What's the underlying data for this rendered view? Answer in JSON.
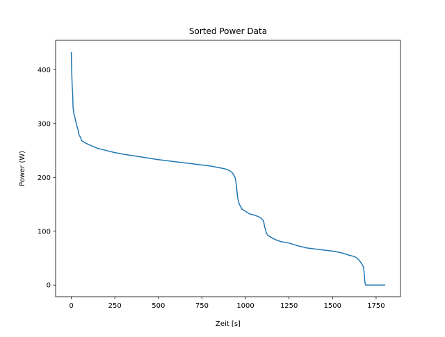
{
  "chart_data": {
    "type": "line",
    "title": "Sorted Power Data",
    "xlabel": "Zeit [s]",
    "ylabel": "Power (W)",
    "xlim": [
      -90,
      1890
    ],
    "ylim": [
      -21.65,
      454.65
    ],
    "xticks": [
      0,
      250,
      500,
      750,
      1000,
      1250,
      1500,
      1750
    ],
    "yticks": [
      0,
      100,
      200,
      300,
      400
    ],
    "grid": false,
    "series": [
      {
        "color": "#1f77b4",
        "x": [
          0,
          3,
          5,
          8,
          10,
          15,
          20,
          25,
          30,
          40,
          45,
          50,
          55,
          60,
          70,
          80,
          100,
          150,
          200,
          250,
          300,
          400,
          500,
          600,
          700,
          800,
          850,
          880,
          900,
          920,
          930,
          940,
          945,
          950,
          955,
          960,
          965,
          970,
          980,
          1000,
          1025,
          1050,
          1075,
          1090,
          1100,
          1105,
          1110,
          1115,
          1120,
          1125,
          1130,
          1150,
          1175,
          1200,
          1250,
          1300,
          1350,
          1400,
          1450,
          1500,
          1550,
          1600,
          1625,
          1640,
          1650,
          1660,
          1670,
          1678,
          1682,
          1686,
          1690,
          1695,
          1700,
          1750,
          1800
        ],
        "y": [
          432,
          390,
          370,
          355,
          330,
          318,
          312,
          305,
          298,
          287,
          278,
          276,
          272,
          268,
          266,
          264,
          261,
          254,
          250,
          246,
          243,
          238,
          233,
          229,
          225,
          221,
          218,
          216,
          214,
          210,
          206,
          200,
          192,
          178,
          162,
          155,
          150,
          147,
          141,
          137,
          132,
          130,
          127,
          124,
          121,
          117,
          108,
          103,
          96,
          94,
          92,
          88,
          84,
          81,
          78,
          73,
          69,
          67,
          65,
          63,
          60,
          55,
          53,
          50,
          47,
          43,
          38,
          33,
          20,
          5,
          0,
          0,
          0,
          0,
          0
        ]
      }
    ]
  }
}
